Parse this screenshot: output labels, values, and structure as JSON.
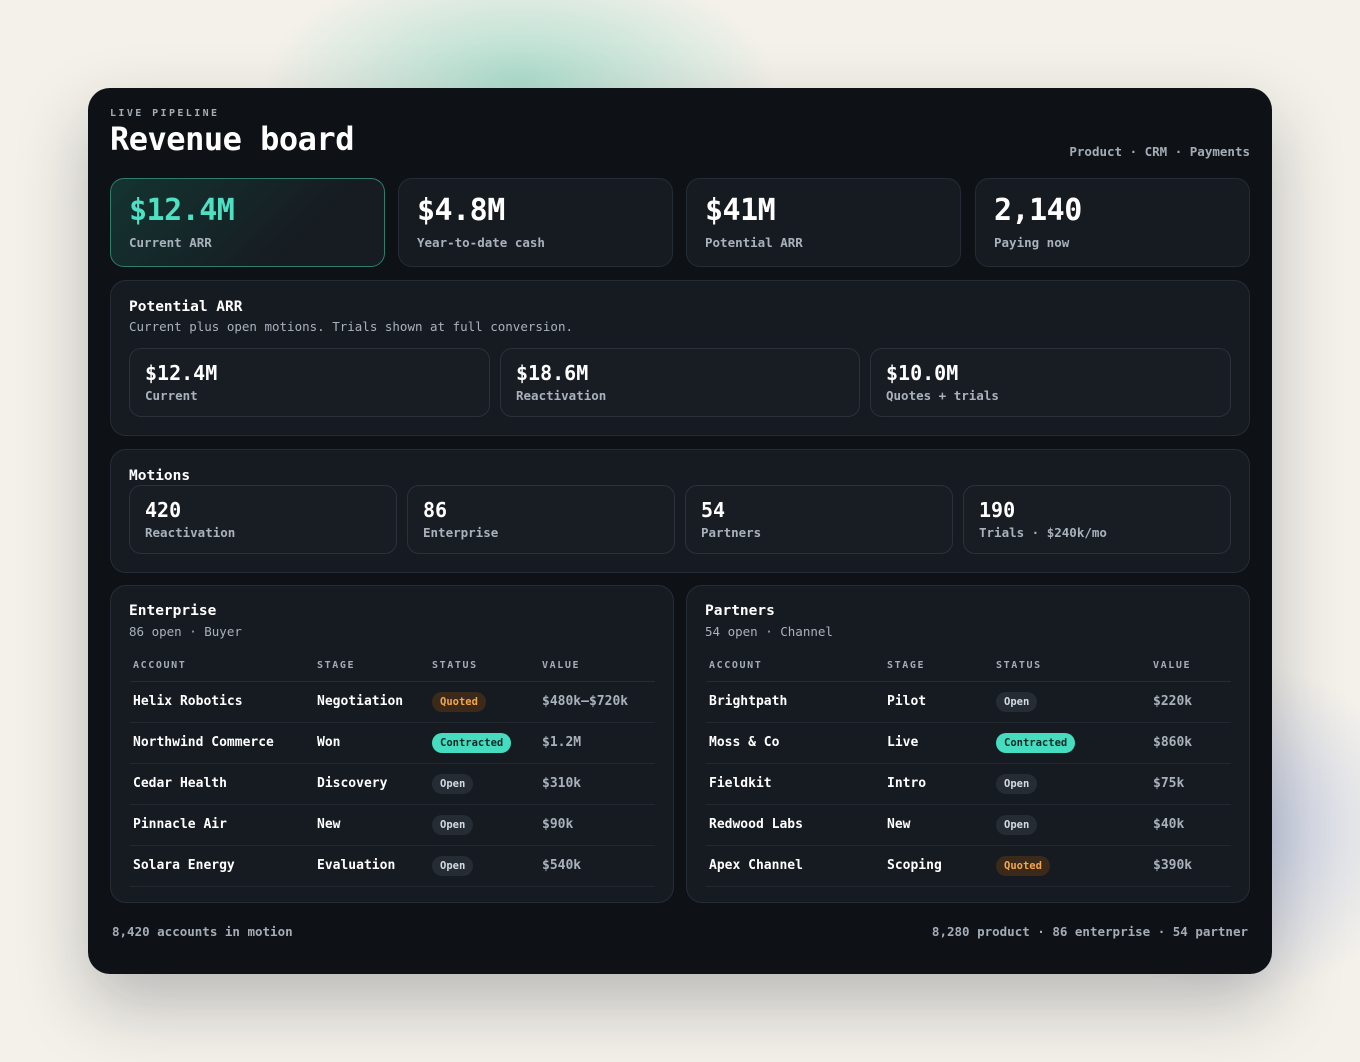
{
  "colors": {
    "page_bg": "#f4f1ea",
    "window_bg": "#0e1217",
    "panel_bg": "#161b22",
    "accent": "#4fe0c4",
    "quoted": "#f3a64b",
    "contracted": "#46dcc0"
  },
  "header": {
    "eyebrow": "LIVE PIPELINE",
    "title": "Revenue board",
    "links": "Product · CRM · Payments"
  },
  "kpis": [
    {
      "value": "$12.4M",
      "label": "Current ARR"
    },
    {
      "value": "$4.8M",
      "label": "Year-to-date cash"
    },
    {
      "value": "$41M",
      "label": "Potential ARR"
    },
    {
      "value": "2,140",
      "label": "Paying now"
    }
  ],
  "potential": {
    "title": "Potential ARR",
    "subtitle": "Current plus open motions. Trials shown at full conversion.",
    "cards": [
      {
        "value": "$12.4M",
        "label": "Current"
      },
      {
        "value": "$18.6M",
        "label": "Reactivation"
      },
      {
        "value": "$10.0M",
        "label": "Quotes + trials"
      }
    ]
  },
  "motions": {
    "title": "Motions",
    "cards": [
      {
        "value": "420",
        "label": "Reactivation"
      },
      {
        "value": "86",
        "label": "Enterprise"
      },
      {
        "value": "54",
        "label": "Partners"
      },
      {
        "value": "190",
        "label": "Trials · $240k/mo"
      }
    ]
  },
  "enterprise": {
    "title": "Enterprise",
    "subtitle": "86 open · Buyer",
    "columns": [
      "ACCOUNT",
      "STAGE",
      "STATUS",
      "VALUE"
    ],
    "rows": [
      {
        "account": "Helix Robotics",
        "stage": "Negotiation",
        "status": "Quoted",
        "value": "$480k–$720k"
      },
      {
        "account": "Northwind Commerce",
        "stage": "Won",
        "status": "Contracted",
        "value": "$1.2M"
      },
      {
        "account": "Cedar Health",
        "stage": "Discovery",
        "status": "Open",
        "value": "$310k"
      },
      {
        "account": "Pinnacle Air",
        "stage": "New",
        "status": "Open",
        "value": "$90k"
      },
      {
        "account": "Solara Energy",
        "stage": "Evaluation",
        "status": "Open",
        "value": "$540k"
      }
    ]
  },
  "partners": {
    "title": "Partners",
    "subtitle": "54 open · Channel",
    "columns": [
      "ACCOUNT",
      "STAGE",
      "STATUS",
      "VALUE"
    ],
    "rows": [
      {
        "account": "Brightpath",
        "stage": "Pilot",
        "status": "Open",
        "value": "$220k"
      },
      {
        "account": "Moss & Co",
        "stage": "Live",
        "status": "Contracted",
        "value": "$860k"
      },
      {
        "account": "Fieldkit",
        "stage": "Intro",
        "status": "Open",
        "value": "$75k"
      },
      {
        "account": "Redwood Labs",
        "stage": "New",
        "status": "Open",
        "value": "$40k"
      },
      {
        "account": "Apex Channel",
        "stage": "Scoping",
        "status": "Quoted",
        "value": "$390k"
      }
    ]
  },
  "footer": {
    "left": "8,420 accounts in motion",
    "right": "8,280 product · 86 enterprise · 54 partner"
  }
}
